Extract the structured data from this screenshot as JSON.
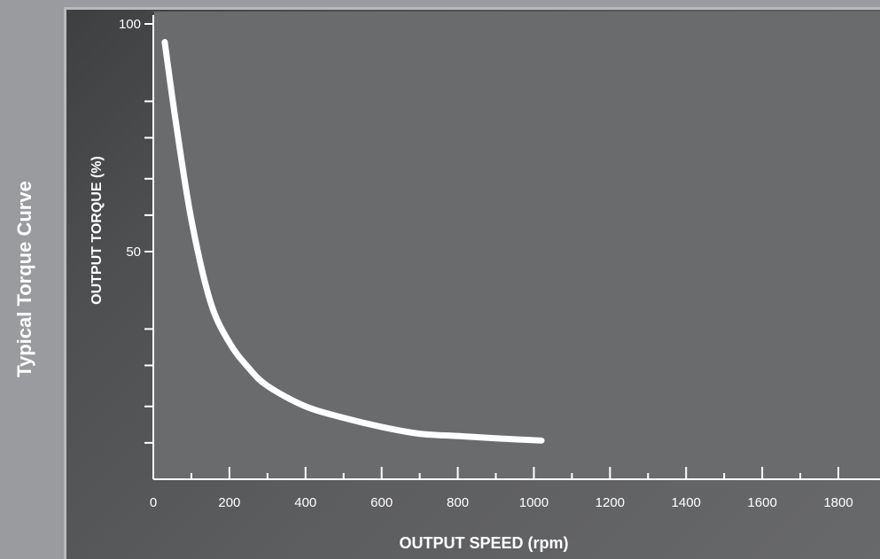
{
  "side_title": "Typical Torque Curve",
  "chart_data": {
    "type": "line",
    "title": "Typical Torque Curve",
    "xlabel": "OUTPUT SPEED (rpm)",
    "ylabel": "OUTPUT TORQUE (%)",
    "xlim": [
      0,
      1800
    ],
    "ylim": [
      0,
      100
    ],
    "x_ticks": [
      0,
      200,
      400,
      600,
      800,
      1000,
      1200,
      1400,
      1600,
      1800
    ],
    "y_tick_labels": [
      50,
      100
    ],
    "y_minor_ticks": [
      8,
      16,
      25,
      33,
      50,
      58,
      66,
      75,
      83,
      100
    ],
    "grid": false,
    "line_color": "#ffffff",
    "series": [
      {
        "x": [
          30,
          60,
          100,
          150,
          200,
          250,
          300,
          400,
          500,
          600,
          700,
          800,
          900,
          1020
        ],
        "y": [
          96,
          78,
          57,
          39,
          30,
          24.5,
          20.5,
          16,
          13.5,
          11.5,
          10,
          9.5,
          9,
          8.5
        ]
      }
    ]
  }
}
